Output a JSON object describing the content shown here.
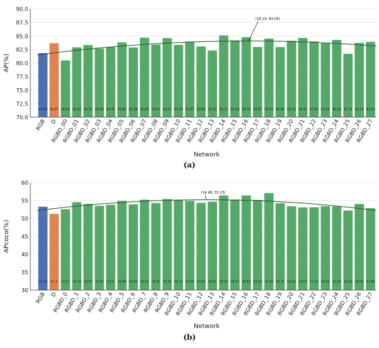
{
  "colors": {
    "rgb": "#4c72b0",
    "d": "#dd8452",
    "rgbd": "#55a868",
    "grid": "#e3e3e3",
    "trend": "#2a5a2a"
  },
  "chart_data": [
    {
      "type": "bar",
      "panel_label": "(a)",
      "xlabel": "Network",
      "ylabel": "AP(%)",
      "ylim": [
        70,
        90
      ],
      "yticks": [
        "70.0",
        "72.5",
        "75.0",
        "77.5",
        "80.0",
        "82.5",
        "85.0",
        "87.5",
        "90.0"
      ],
      "grid": true,
      "annotation": "(18.19, 84.08)",
      "annotation_x": 18.19,
      "annotation_y": 84.08,
      "trend_line": true,
      "categories": [
        "RGB",
        "D",
        "RGBD_00",
        "RGBD_01",
        "RGBD_02",
        "RGBD_03",
        "RGBD_04",
        "RGBD_05",
        "RGBD_06",
        "RGBD_07",
        "RGBD_08",
        "RGBD_09",
        "RGBD_10",
        "RGBD_11",
        "RGBD_12",
        "RGBD_13",
        "RGBD_14",
        "RGBD_15",
        "RGBD_16",
        "RGBD_17",
        "RGBD_18",
        "RGBD_19",
        "RGBD_20",
        "RGBD_21",
        "RGBD_22",
        "RGBD_23",
        "RGBD_24",
        "RGBD_25",
        "RGBD_26",
        "RGBD_27"
      ],
      "values": [
        81.84,
        83.67,
        80.49,
        82.91,
        83.33,
        82.68,
        82.96,
        83.82,
        82.88,
        84.69,
        83.41,
        84.61,
        83.35,
        83.97,
        83.06,
        82.32,
        85.11,
        84.19,
        84.78,
        82.97,
        84.53,
        82.95,
        84.12,
        84.64,
        83.99,
        83.65,
        84.28,
        81.71,
        83.73,
        83.92
      ],
      "value_labels": [
        "81.84",
        "83.67",
        "80.49",
        "82.91",
        "83.33",
        "82.68",
        "82.96",
        "83.82",
        "82.88",
        "84.69",
        "83.41",
        "84.61",
        "83.35",
        "83.97",
        "83.06",
        "82.32",
        "85.11",
        "84.19",
        "84.78",
        "82.97",
        "84.53",
        "82.95",
        "84.12",
        "84.64",
        "83.99",
        "83.65",
        "84.28",
        "81.71",
        "83.73",
        "83.92"
      ]
    },
    {
      "type": "bar",
      "panel_label": "(b)",
      "xlabel": "Network",
      "ylabel": "APcoco(%)",
      "ylim": [
        30,
        60
      ],
      "yticks": [
        "30",
        "35",
        "40",
        "45",
        "50",
        "55",
        "60"
      ],
      "grid": true,
      "annotation": "(14.48, 55.23)",
      "annotation_x": 14.48,
      "annotation_y": 55.23,
      "trend_line": true,
      "categories": [
        "RGB",
        "D",
        "RGBD_0",
        "RGBD_1",
        "RGBD_2",
        "RGBD_3",
        "RGBD_4",
        "RGBD_5",
        "RGBD_6",
        "RGBD_7",
        "RGBD_8",
        "RGBD_9",
        "RGBD_10",
        "RGBD_11",
        "RGBD_12",
        "RGBD_13",
        "RGBD_14",
        "RGBD_15",
        "RGBD_16",
        "RGBD_17",
        "RGBD_18",
        "RGBD_19",
        "RGBD_20",
        "RGBD_21",
        "RGBD_22",
        "RGBD_23",
        "RGBD_24",
        "RGBD_25",
        "RGBD_26",
        "RGBD_27"
      ],
      "values": [
        53.29,
        51.3,
        52.57,
        54.54,
        54.07,
        53.51,
        53.8,
        54.89,
        53.93,
        55.24,
        54.31,
        55.42,
        55.12,
        54.89,
        54.35,
        54.67,
        56.43,
        55.27,
        56.43,
        55.16,
        57.08,
        54.25,
        53.43,
        53.07,
        53.13,
        53.41,
        53.36,
        52.23,
        54.05,
        52.86
      ],
      "value_labels": [
        "53.29",
        "51.3",
        "52.57",
        "54.54",
        "54.07",
        "53.51",
        "53.8",
        "54.89",
        "53.93",
        "55.24",
        "54.31",
        "55.42",
        "55.12",
        "54.89",
        "54.35",
        "54.67",
        "56.43",
        "55.27",
        "56.43",
        "55.16",
        "57.08",
        "54.25",
        "53.43",
        "53.07",
        "53.13",
        "53.41",
        "53.36",
        "52.23",
        "54.05",
        "52.86"
      ]
    }
  ]
}
